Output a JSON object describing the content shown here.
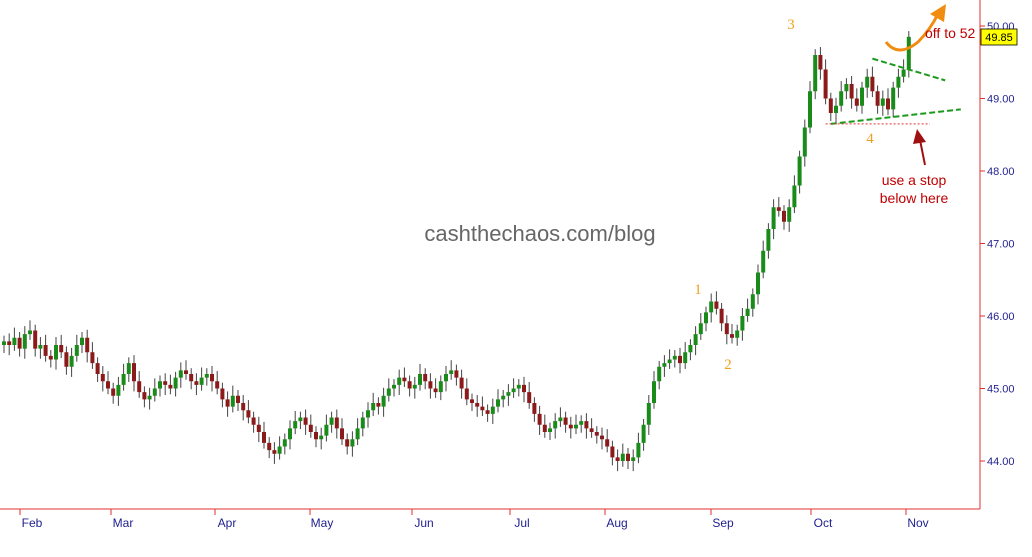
{
  "watermark": "cashthechaos.com/blog",
  "price_label": "49.85",
  "annotations": {
    "wave_1": "1",
    "wave_2": "2",
    "wave_3": "3",
    "wave_4": "4",
    "target": "off to 52",
    "stop_line1": "use a stop",
    "stop_line2": "below here"
  },
  "colors": {
    "up_candle": "#1a8a1a",
    "down_candle": "#8b1a1a",
    "wick": "#444444",
    "axis": "#e03030",
    "tick_text": "#1f1f8f",
    "triangle": "#1a9a1a",
    "stop_line": "#e03030",
    "arrow_orange": "#f08c10",
    "arrow_red": "#a01010",
    "price_box": "#ffff00"
  },
  "chart_data": {
    "type": "candlestick",
    "title": "",
    "xlabel": "",
    "ylabel": "",
    "ylim": [
      43.4,
      50.1
    ],
    "y_ticks": [
      "44.00",
      "45.00",
      "46.00",
      "47.00",
      "48.00",
      "49.00",
      "50.00"
    ],
    "x_ticks": [
      "Feb",
      "Mar",
      "Apr",
      "May",
      "Jun",
      "Jul",
      "Aug",
      "Sep",
      "Oct",
      "Nov"
    ],
    "grid": false,
    "last_price": 49.85,
    "closes": [
      45.65,
      45.6,
      45.7,
      45.55,
      45.75,
      45.8,
      45.55,
      45.6,
      45.45,
      45.4,
      45.6,
      45.5,
      45.3,
      45.45,
      45.6,
      45.7,
      45.5,
      45.35,
      45.2,
      45.1,
      45.0,
      44.9,
      45.05,
      45.2,
      45.35,
      45.1,
      44.95,
      44.85,
      44.9,
      45.0,
      45.1,
      45.05,
      45.0,
      45.15,
      45.25,
      45.2,
      45.1,
      45.05,
      45.15,
      45.2,
      45.1,
      45.0,
      44.85,
      44.75,
      44.9,
      44.8,
      44.7,
      44.6,
      44.5,
      44.4,
      44.25,
      44.15,
      44.1,
      44.2,
      44.3,
      44.45,
      44.55,
      44.6,
      44.5,
      44.4,
      44.3,
      44.35,
      44.5,
      44.6,
      44.45,
      44.3,
      44.2,
      44.3,
      44.45,
      44.6,
      44.7,
      44.8,
      44.75,
      44.9,
      45.0,
      45.05,
      45.15,
      45.1,
      45.0,
      45.05,
      45.2,
      45.1,
      45.0,
      44.95,
      45.1,
      45.2,
      45.25,
      45.15,
      45.0,
      44.85,
      44.8,
      44.75,
      44.7,
      44.65,
      44.75,
      44.85,
      44.9,
      44.95,
      45.0,
      45.05,
      44.95,
      44.8,
      44.65,
      44.5,
      44.4,
      44.45,
      44.55,
      44.6,
      44.5,
      44.45,
      44.5,
      44.55,
      44.45,
      44.4,
      44.35,
      44.3,
      44.2,
      44.05,
      44.0,
      44.1,
      44.0,
      44.05,
      44.25,
      44.5,
      44.8,
      45.1,
      45.3,
      45.35,
      45.4,
      45.45,
      45.35,
      45.5,
      45.6,
      45.75,
      45.9,
      46.05,
      46.2,
      46.1,
      45.9,
      45.75,
      45.7,
      45.8,
      46.0,
      46.1,
      46.3,
      46.6,
      46.9,
      47.2,
      47.5,
      47.45,
      47.3,
      47.5,
      47.8,
      48.2,
      48.6,
      49.1,
      49.6,
      49.4,
      49.0,
      48.8,
      48.9,
      49.1,
      49.2,
      49.0,
      48.9,
      49.15,
      49.3,
      49.1,
      48.9,
      49.0,
      48.85,
      49.15,
      49.3,
      49.4,
      49.85
    ],
    "triangle_upper": [
      [
        167,
        49.55
      ],
      [
        181,
        49.25
      ]
    ],
    "triangle_lower": [
      [
        159,
        48.65
      ],
      [
        184,
        48.85
      ]
    ],
    "stop_level": 48.65
  }
}
